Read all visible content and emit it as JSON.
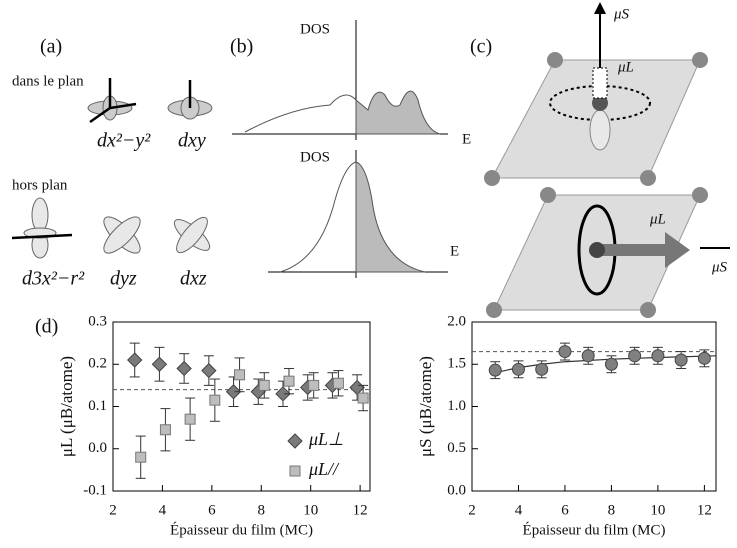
{
  "panels": {
    "a": {
      "label": "(a)",
      "in_plane": "dans le plan",
      "out_plane": "hors plan",
      "orbitals": [
        "dx²−y²",
        "dxy",
        "d3x²−r²",
        "dyz",
        "dxz"
      ]
    },
    "b": {
      "label": "(b)",
      "dos_top": "DOS",
      "e_top": "E",
      "dos_bottom": "DOS",
      "e_bottom": "E"
    },
    "c": {
      "label": "(c)",
      "mu_s_top": "μS",
      "mu_l_top": "μL",
      "mu_l_bottom": "μL",
      "mu_s_bottom": "μS"
    },
    "d": {
      "label": "(d)"
    }
  },
  "chart_data": [
    {
      "type": "scatter",
      "ylabel": "μL (μB/atome)",
      "xlabel": "Épaisseur du film (MC)",
      "xlim": [
        2,
        12.4
      ],
      "ylim": [
        -0.1,
        0.3
      ],
      "xticks": [
        2,
        4,
        6,
        8,
        10,
        12
      ],
      "yticks": [
        -0.1,
        {
          "value": 0,
          "label": "0.0"
        },
        0.1,
        0.2,
        0.3
      ],
      "reference_line": 0.14,
      "legend": "lower right",
      "x": [
        3,
        4,
        5,
        6,
        7,
        8,
        9,
        10,
        11,
        12
      ],
      "series": [
        {
          "name": "μL⊥",
          "marker": "diamond",
          "color": "#7a7a7a",
          "values": [
            0.21,
            0.2,
            0.19,
            0.185,
            0.135,
            0.135,
            0.13,
            0.145,
            0.15,
            0.145
          ],
          "errors": [
            0.04,
            0.04,
            0.035,
            0.035,
            0.035,
            0.03,
            0.03,
            0.03,
            0.03,
            0.03
          ]
        },
        {
          "name": "μL//",
          "marker": "square",
          "color": "#bdbdbd",
          "values": [
            -0.02,
            0.045,
            0.07,
            0.115,
            0.175,
            0.15,
            0.16,
            0.15,
            0.155,
            0.12
          ],
          "errors": [
            0.05,
            0.05,
            0.05,
            0.05,
            0.04,
            0.03,
            0.03,
            0.03,
            0.03,
            0.03
          ]
        }
      ]
    },
    {
      "type": "scatter",
      "ylabel": "μS (μB/atome)",
      "xlabel": "Épaisseur du film (MC)",
      "xlim": [
        2,
        12.5
      ],
      "ylim": [
        0,
        2
      ],
      "xticks": [
        2,
        4,
        6,
        8,
        10,
        12
      ],
      "yticks": [
        {
          "value": 0,
          "label": "0.0"
        },
        0.5,
        {
          "value": 1,
          "label": "1.0"
        },
        1.5,
        {
          "value": 2,
          "label": "2.0"
        }
      ],
      "reference_line": 1.65,
      "fit": {
        "x": [
          3,
          4,
          5,
          6,
          8,
          10,
          12.5
        ],
        "values": [
          1.4,
          1.46,
          1.5,
          1.53,
          1.56,
          1.58,
          1.6
        ]
      },
      "x": [
        3,
        4,
        5,
        6,
        7,
        8,
        9,
        10,
        11,
        12
      ],
      "series": [
        {
          "marker": "circle",
          "color": "#808080",
          "values": [
            1.43,
            1.44,
            1.44,
            1.65,
            1.6,
            1.5,
            1.6,
            1.6,
            1.55,
            1.57
          ],
          "errors": [
            0.1,
            0.1,
            0.1,
            0.1,
            0.1,
            0.1,
            0.1,
            0.1,
            0.1,
            0.1
          ]
        }
      ]
    }
  ]
}
